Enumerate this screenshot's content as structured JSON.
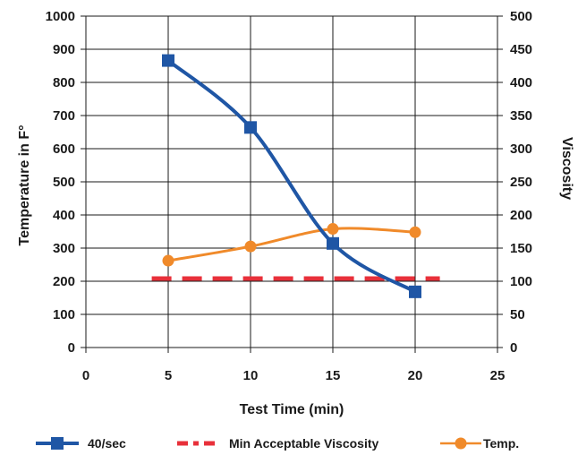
{
  "chart_data": {
    "type": "line",
    "title": "",
    "xlabel": "Test Time (min)",
    "ylabel_left": "Temperature in F°",
    "ylabel_right": "Viscosity",
    "xlim": [
      0,
      25
    ],
    "ylim_left": [
      0,
      1000
    ],
    "ylim_right": [
      0,
      500
    ],
    "x_ticks": [
      "0",
      "5",
      "10",
      "15",
      "20",
      "25"
    ],
    "y_ticks_left": [
      "0",
      "100",
      "200",
      "300",
      "400",
      "500",
      "600",
      "700",
      "800",
      "900",
      "1000"
    ],
    "y_ticks_right": [
      "0",
      "50",
      "100",
      "150",
      "200",
      "250",
      "300",
      "350",
      "400",
      "450",
      "500"
    ],
    "grid": true,
    "legend_position": "bottom",
    "series": [
      {
        "name": "40/sec",
        "axis": "right",
        "color": "#1f56a5",
        "marker": "square",
        "smooth": true,
        "x": [
          5,
          10,
          15,
          20
        ],
        "y": [
          433,
          332,
          157,
          84
        ]
      },
      {
        "name": "Min Acceptable Viscosity",
        "axis": "right",
        "color": "#e8303a",
        "style": "dashed",
        "x": [
          4,
          21.5
        ],
        "y": [
          104,
          104
        ]
      },
      {
        "name": "Temp.",
        "axis": "left",
        "color": "#f08a2a",
        "marker": "circle",
        "smooth": true,
        "x": [
          5,
          10,
          15,
          20
        ],
        "y": [
          262,
          305,
          358,
          348
        ]
      }
    ]
  }
}
